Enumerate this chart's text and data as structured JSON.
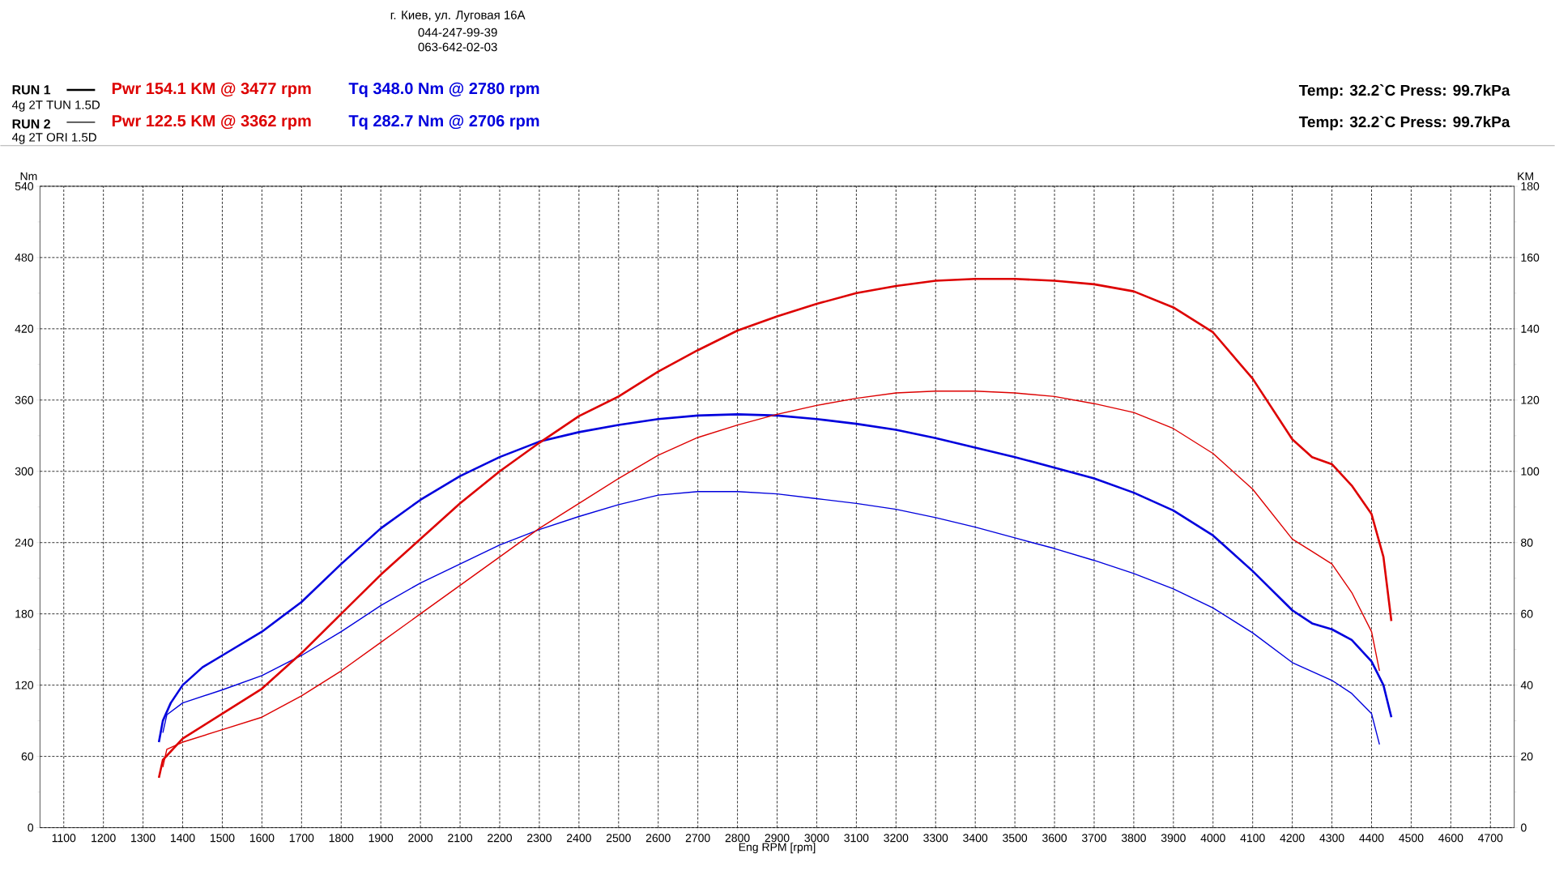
{
  "chart_data": {
    "type": "line",
    "xlabel": "Eng RPM [rpm]",
    "ylabel": "Nm",
    "y2label": "KM",
    "xlim": [
      1040,
      4760
    ],
    "ylim": [
      0,
      540
    ],
    "y2lim": [
      0,
      180
    ],
    "xticks": [
      1100,
      1200,
      1300,
      1400,
      1500,
      1600,
      1700,
      1800,
      1900,
      2000,
      2100,
      2200,
      2300,
      2400,
      2500,
      2600,
      2700,
      2800,
      2900,
      3000,
      3100,
      3200,
      3300,
      3400,
      3500,
      3600,
      3700,
      3800,
      3900,
      4000,
      4100,
      4200,
      4300,
      4400,
      4500,
      4600,
      4700
    ],
    "yticks": [
      0,
      60,
      120,
      180,
      240,
      300,
      360,
      420,
      480,
      540
    ],
    "y2ticks": [
      0,
      20,
      40,
      60,
      80,
      100,
      120,
      140,
      160,
      180
    ],
    "grid": true,
    "annotations": [
      "г. Киев, ул. Луговая 16А",
      "044-247-99-39",
      "063-642-02-03",
      "RUN 1",
      "Pwr  154.1 KM @ 3477 rpm",
      "Tq 348.0 Nm @ 2780 rpm",
      "4g 2T TUN 1.5D",
      "Temp: 32.2`C    Press: 99.7kPa",
      "RUN 2",
      "Pwr  122.5 KM @ 3362 rpm",
      "Tq 282.7 Nm @ 2706 rpm",
      "4g 2T ORI 1.5D",
      "Temp: 32.2`C    Press: 99.7kPa"
    ],
    "series": [
      {
        "color": "#0000dd",
        "x": [
          1340,
          1350,
          1370,
          1400,
          1450,
          1500,
          1600,
          1700,
          1800,
          1900,
          2000,
          2100,
          2200,
          2300,
          2400,
          2500,
          2600,
          2700,
          2800,
          2900,
          3000,
          3100,
          3200,
          3300,
          3400,
          3500,
          3600,
          3700,
          3800,
          3900,
          4000,
          4100,
          4200,
          4250,
          4300,
          4350,
          4400,
          4430,
          4450
        ],
        "values": [
          72,
          90,
          105,
          120,
          135,
          145,
          165,
          190,
          222,
          252,
          276,
          296,
          312,
          325,
          333,
          339,
          344,
          347,
          348,
          347,
          344,
          340,
          335,
          328,
          320,
          312,
          303,
          294,
          282,
          267,
          246,
          216,
          183,
          172,
          167,
          158,
          140,
          120,
          93
        ]
      },
      {
        "color": "#0000dd",
        "x": [
          1350,
          1360,
          1400,
          1500,
          1600,
          1700,
          1800,
          1900,
          2000,
          2100,
          2200,
          2300,
          2400,
          2500,
          2600,
          2700,
          2800,
          2900,
          3000,
          3100,
          3200,
          3300,
          3400,
          3500,
          3600,
          3700,
          3800,
          3900,
          4000,
          4100,
          4200,
          4300,
          4350,
          4400,
          4420
        ],
        "values": [
          80,
          95,
          105,
          116,
          128,
          145,
          165,
          187,
          206,
          222,
          238,
          251,
          262,
          272,
          280,
          283,
          283,
          281,
          277,
          273,
          268,
          261,
          253,
          244,
          235,
          225,
          214,
          201,
          185,
          164,
          139,
          124,
          113,
          96,
          70
        ]
      },
      {
        "color": "#dd0000",
        "axis": "y2",
        "x": [
          1340,
          1350,
          1400,
          1500,
          1600,
          1700,
          1800,
          1900,
          2000,
          2100,
          2200,
          2300,
          2400,
          2500,
          2600,
          2700,
          2800,
          2900,
          3000,
          3100,
          3200,
          3300,
          3400,
          3500,
          3600,
          3700,
          3800,
          3900,
          4000,
          4100,
          4200,
          4250,
          4300,
          4350,
          4400,
          4430,
          4450
        ],
        "values": [
          14,
          19,
          25,
          32,
          39,
          49,
          60,
          71,
          81,
          91,
          100,
          108,
          115.5,
          121,
          128,
          134,
          139.5,
          143.5,
          147,
          150,
          152,
          153.5,
          154,
          154,
          153.5,
          152.5,
          150.5,
          146,
          139,
          126,
          109,
          104,
          102,
          96,
          88,
          76,
          58
        ]
      },
      {
        "color": "#dd0000",
        "axis": "y2",
        "x": [
          1350,
          1360,
          1400,
          1500,
          1600,
          1700,
          1800,
          1900,
          2000,
          2100,
          2200,
          2300,
          2400,
          2500,
          2600,
          2700,
          2800,
          2900,
          3000,
          3100,
          3200,
          3300,
          3400,
          3500,
          3600,
          3700,
          3800,
          3900,
          4000,
          4100,
          4200,
          4250,
          4300,
          4350,
          4400,
          4420
        ],
        "values": [
          17,
          22,
          24,
          27.5,
          31,
          37,
          44,
          52,
          60,
          68,
          76,
          84,
          91,
          98,
          104.5,
          109.5,
          113,
          116,
          118.5,
          120.5,
          122,
          122.5,
          122.5,
          122,
          121,
          119,
          116.5,
          112,
          105,
          95,
          81,
          77.5,
          74,
          66,
          55,
          44
        ]
      }
    ]
  }
}
